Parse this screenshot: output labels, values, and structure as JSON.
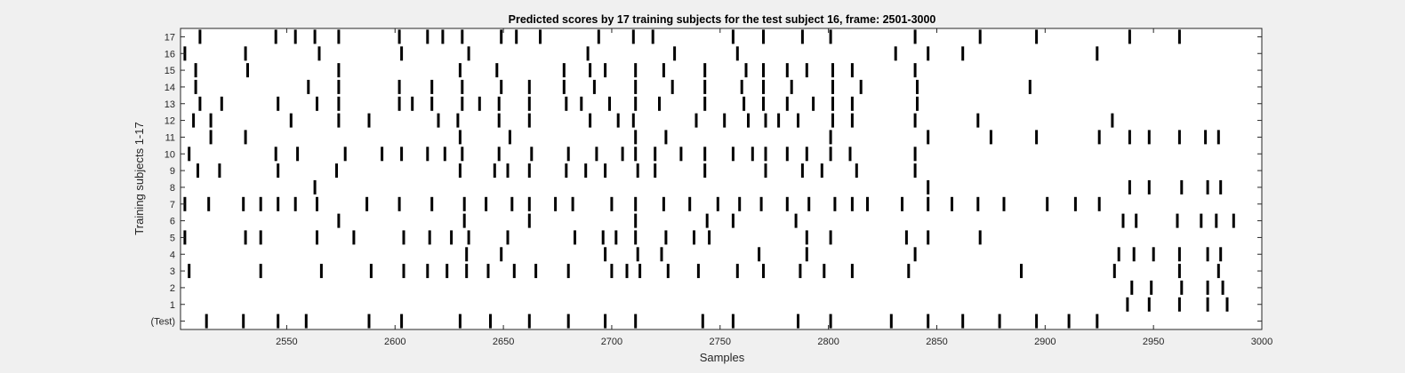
{
  "chart_data": {
    "type": "raster",
    "title": "Predicted scores by 17 training subjects for the test subject 16, frame: 2501-3000",
    "xlabel": "Samples",
    "ylabel": "Training subjects 1-17",
    "xlim": [
      2501,
      3000
    ],
    "x_ticks": [
      2550,
      2600,
      2650,
      2700,
      2750,
      2800,
      2850,
      2900,
      2950,
      3000
    ],
    "y_tick_labels": [
      "17",
      "16",
      "15",
      "14",
      "13",
      "12",
      "11",
      "10",
      "9",
      "8",
      "7",
      "6",
      "5",
      "4",
      "3",
      "2",
      "1",
      "(Test)"
    ],
    "grid": false,
    "background": "#ffffff",
    "mark_color": "#000000",
    "rows": [
      {
        "label": "17",
        "x": [
          2510,
          2545,
          2554,
          2563,
          2574,
          2602,
          2615,
          2622,
          2631,
          2649,
          2656,
          2667,
          2694,
          2710,
          2719,
          2756,
          2770,
          2788,
          2801,
          2840,
          2870,
          2896,
          2939,
          2962
        ]
      },
      {
        "label": "16",
        "x": [
          2503,
          2531,
          2565,
          2603,
          2634,
          2689,
          2729,
          2758,
          2831,
          2846,
          2862,
          2924
        ]
      },
      {
        "label": "15",
        "x": [
          2508,
          2532,
          2574,
          2630,
          2647,
          2678,
          2690,
          2697,
          2711,
          2724,
          2743,
          2762,
          2770,
          2781,
          2790,
          2802,
          2811,
          2840
        ]
      },
      {
        "label": "14",
        "x": [
          2508,
          2560,
          2574,
          2602,
          2617,
          2631,
          2649,
          2662,
          2678,
          2692,
          2711,
          2728,
          2743,
          2760,
          2770,
          2783,
          2802,
          2815,
          2841,
          2893
        ]
      },
      {
        "label": "13",
        "x": [
          2510,
          2520,
          2546,
          2564,
          2574,
          2602,
          2608,
          2617,
          2631,
          2639,
          2648,
          2662,
          2679,
          2686,
          2699,
          2711,
          2722,
          2743,
          2761,
          2770,
          2781,
          2793,
          2802,
          2811,
          2841
        ]
      },
      {
        "label": "12",
        "x": [
          2507,
          2515,
          2552,
          2574,
          2588,
          2620,
          2629,
          2648,
          2662,
          2690,
          2703,
          2710,
          2739,
          2752,
          2763,
          2771,
          2777,
          2786,
          2802,
          2811,
          2840,
          2869,
          2931
        ]
      },
      {
        "label": "11",
        "x": [
          2515,
          2531,
          2630,
          2653,
          2711,
          2725,
          2801,
          2846,
          2875,
          2896,
          2925,
          2939,
          2948,
          2962,
          2974,
          2980
        ]
      },
      {
        "label": "10",
        "x": [
          2505,
          2545,
          2555,
          2577,
          2594,
          2603,
          2615,
          2623,
          2631,
          2648,
          2663,
          2680,
          2693,
          2705,
          2711,
          2720,
          2732,
          2743,
          2756,
          2765,
          2771,
          2781,
          2790,
          2801,
          2810,
          2840
        ]
      },
      {
        "label": "9",
        "x": [
          2509,
          2519,
          2546,
          2573,
          2630,
          2646,
          2652,
          2662,
          2679,
          2688,
          2697,
          2712,
          2720,
          2743,
          2771,
          2788,
          2797,
          2813,
          2840
        ]
      },
      {
        "label": "8",
        "x": [
          2563,
          2846,
          2939,
          2948,
          2963,
          2975,
          2981
        ]
      },
      {
        "label": "7",
        "x": [
          2503,
          2514,
          2530,
          2538,
          2546,
          2554,
          2564,
          2587,
          2602,
          2617,
          2632,
          2642,
          2654,
          2662,
          2674,
          2682,
          2700,
          2711,
          2724,
          2736,
          2749,
          2759,
          2769,
          2781,
          2791,
          2803,
          2811,
          2818,
          2834,
          2846,
          2857,
          2869,
          2881,
          2901,
          2914,
          2925
        ]
      },
      {
        "label": "6",
        "x": [
          2574,
          2632,
          2662,
          2711,
          2744,
          2756,
          2785,
          2936,
          2942,
          2961,
          2972,
          2979,
          2987
        ]
      },
      {
        "label": "5",
        "x": [
          2503,
          2531,
          2538,
          2564,
          2581,
          2604,
          2616,
          2626,
          2634,
          2652,
          2683,
          2696,
          2702,
          2711,
          2725,
          2738,
          2745,
          2790,
          2801,
          2836,
          2846,
          2870
        ]
      },
      {
        "label": "4",
        "x": [
          2633,
          2649,
          2697,
          2712,
          2723,
          2768,
          2790,
          2840,
          2934,
          2941,
          2950,
          2962,
          2975,
          2981
        ]
      },
      {
        "label": "3",
        "x": [
          2505,
          2538,
          2566,
          2589,
          2604,
          2615,
          2624,
          2633,
          2643,
          2655,
          2665,
          2680,
          2700,
          2707,
          2713,
          2726,
          2740,
          2758,
          2770,
          2787,
          2798,
          2811,
          2837,
          2889,
          2932,
          2962,
          2980
        ]
      },
      {
        "label": "2",
        "x": [
          2940,
          2949,
          2963,
          2975,
          2982
        ]
      },
      {
        "label": "1",
        "x": [
          2938,
          2948,
          2962,
          2975,
          2984
        ]
      },
      {
        "label": "(Test)",
        "x": [
          2513,
          2530,
          2546,
          2559,
          2588,
          2603,
          2630,
          2644,
          2662,
          2680,
          2697,
          2711,
          2742,
          2756,
          2786,
          2801,
          2829,
          2846,
          2862,
          2879,
          2896,
          2911,
          2924
        ]
      }
    ]
  }
}
